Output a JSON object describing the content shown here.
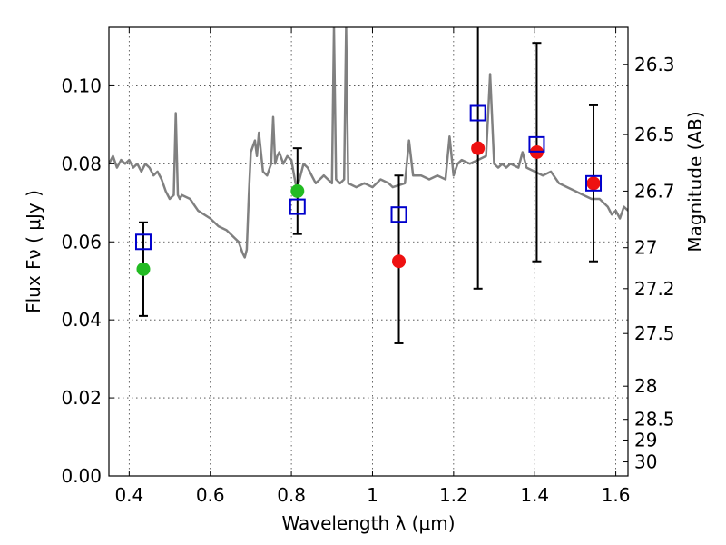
{
  "chart_data": {
    "type": "scatter",
    "title": "",
    "xlabel": "Wavelength  λ (μm)",
    "ylabel": "Flux  Fν  ( μJy )",
    "ylabel_right": "Magnitude (AB)",
    "xlim": [
      0.35,
      1.63
    ],
    "ylim": [
      0.0,
      0.115
    ],
    "grid": true,
    "x_ticks": [
      0.4,
      0.6,
      0.8,
      1.0,
      1.2,
      1.4,
      1.6
    ],
    "x_tick_labels": [
      "0.4",
      "0.6",
      "0.8",
      "1",
      "1.2",
      "1.4",
      "1.6"
    ],
    "y_ticks": [
      0.0,
      0.02,
      0.04,
      0.06,
      0.08,
      0.1
    ],
    "y_tick_labels": [
      "0.00",
      "0.02",
      "0.04",
      "0.06",
      "0.08",
      "0.10"
    ],
    "magnitude_ticks": [
      {
        "label": "26.3",
        "flux": 0.1054
      },
      {
        "label": "26.5",
        "flux": 0.0875
      },
      {
        "label": "26.7",
        "flux": 0.073
      },
      {
        "label": "27",
        "flux": 0.0585
      },
      {
        "label": "27.2",
        "flux": 0.048
      },
      {
        "label": "27.5",
        "flux": 0.0365
      },
      {
        "label": "28",
        "flux": 0.023
      },
      {
        "label": "28.5",
        "flux": 0.0145
      },
      {
        "label": "29",
        "flux": 0.0092
      },
      {
        "label": "30",
        "flux": 0.0036
      }
    ],
    "series": [
      {
        "kind": "line",
        "color": "#808080",
        "x": [
          0.35,
          0.36,
          0.37,
          0.38,
          0.39,
          0.4,
          0.41,
          0.42,
          0.43,
          0.44,
          0.45,
          0.46,
          0.47,
          0.48,
          0.49,
          0.5,
          0.51,
          0.515,
          0.52,
          0.525,
          0.53,
          0.55,
          0.57,
          0.6,
          0.62,
          0.64,
          0.66,
          0.67,
          0.68,
          0.685,
          0.69,
          0.695,
          0.7,
          0.71,
          0.715,
          0.72,
          0.73,
          0.74,
          0.75,
          0.755,
          0.76,
          0.765,
          0.77,
          0.78,
          0.79,
          0.8,
          0.81,
          0.815,
          0.82,
          0.83,
          0.84,
          0.85,
          0.86,
          0.87,
          0.88,
          0.89,
          0.9,
          0.905,
          0.91,
          0.92,
          0.93,
          0.935,
          0.94,
          0.96,
          0.98,
          1.0,
          1.02,
          1.04,
          1.05,
          1.08,
          1.09,
          1.1,
          1.12,
          1.14,
          1.16,
          1.18,
          1.19,
          1.2,
          1.21,
          1.22,
          1.24,
          1.26,
          1.28,
          1.29,
          1.3,
          1.31,
          1.32,
          1.33,
          1.34,
          1.36,
          1.37,
          1.38,
          1.4,
          1.42,
          1.44,
          1.46,
          1.48,
          1.5,
          1.52,
          1.54,
          1.56,
          1.58,
          1.59,
          1.6,
          1.61,
          1.62,
          1.63
        ],
        "y": [
          0.08,
          0.082,
          0.079,
          0.081,
          0.08,
          0.081,
          0.079,
          0.08,
          0.078,
          0.08,
          0.079,
          0.077,
          0.078,
          0.076,
          0.073,
          0.071,
          0.072,
          0.093,
          0.072,
          0.071,
          0.072,
          0.071,
          0.068,
          0.066,
          0.064,
          0.063,
          0.061,
          0.06,
          0.057,
          0.056,
          0.058,
          0.072,
          0.083,
          0.086,
          0.082,
          0.088,
          0.078,
          0.077,
          0.08,
          0.092,
          0.08,
          0.082,
          0.083,
          0.08,
          0.082,
          0.081,
          0.075,
          0.074,
          0.076,
          0.08,
          0.079,
          0.077,
          0.075,
          0.076,
          0.077,
          0.076,
          0.075,
          0.115,
          0.076,
          0.075,
          0.076,
          0.115,
          0.075,
          0.074,
          0.075,
          0.074,
          0.076,
          0.075,
          0.074,
          0.075,
          0.086,
          0.077,
          0.077,
          0.076,
          0.077,
          0.076,
          0.087,
          0.077,
          0.08,
          0.081,
          0.08,
          0.081,
          0.082,
          0.103,
          0.08,
          0.079,
          0.08,
          0.079,
          0.08,
          0.079,
          0.083,
          0.079,
          0.078,
          0.077,
          0.078,
          0.075,
          0.074,
          0.073,
          0.072,
          0.071,
          0.071,
          0.069,
          0.067,
          0.068,
          0.066,
          0.069,
          0.068
        ]
      },
      {
        "kind": "markers",
        "marker": "circle",
        "color": "#22bb22",
        "points": [
          {
            "x": 0.435,
            "y": 0.053,
            "yerr_low": 0.041,
            "yerr_high": 0.065
          },
          {
            "x": 0.815,
            "y": 0.073,
            "yerr_low": 0.062,
            "yerr_high": 0.084
          }
        ]
      },
      {
        "kind": "markers",
        "marker": "circle",
        "color": "#ee1111",
        "points": [
          {
            "x": 1.065,
            "y": 0.055,
            "yerr_low": 0.034,
            "yerr_high": 0.077
          },
          {
            "x": 1.26,
            "y": 0.084,
            "yerr_low": 0.048,
            "yerr_high": 0.115
          },
          {
            "x": 1.405,
            "y": 0.083,
            "yerr_low": 0.055,
            "yerr_high": 0.111
          },
          {
            "x": 1.545,
            "y": 0.075,
            "yerr_low": 0.055,
            "yerr_high": 0.095
          }
        ]
      },
      {
        "kind": "markers",
        "marker": "square-open",
        "color": "#0000cc",
        "points": [
          {
            "x": 0.435,
            "y": 0.06
          },
          {
            "x": 0.815,
            "y": 0.069
          },
          {
            "x": 1.065,
            "y": 0.067
          },
          {
            "x": 1.26,
            "y": 0.093
          },
          {
            "x": 1.405,
            "y": 0.085
          },
          {
            "x": 1.545,
            "y": 0.075
          }
        ]
      }
    ]
  }
}
